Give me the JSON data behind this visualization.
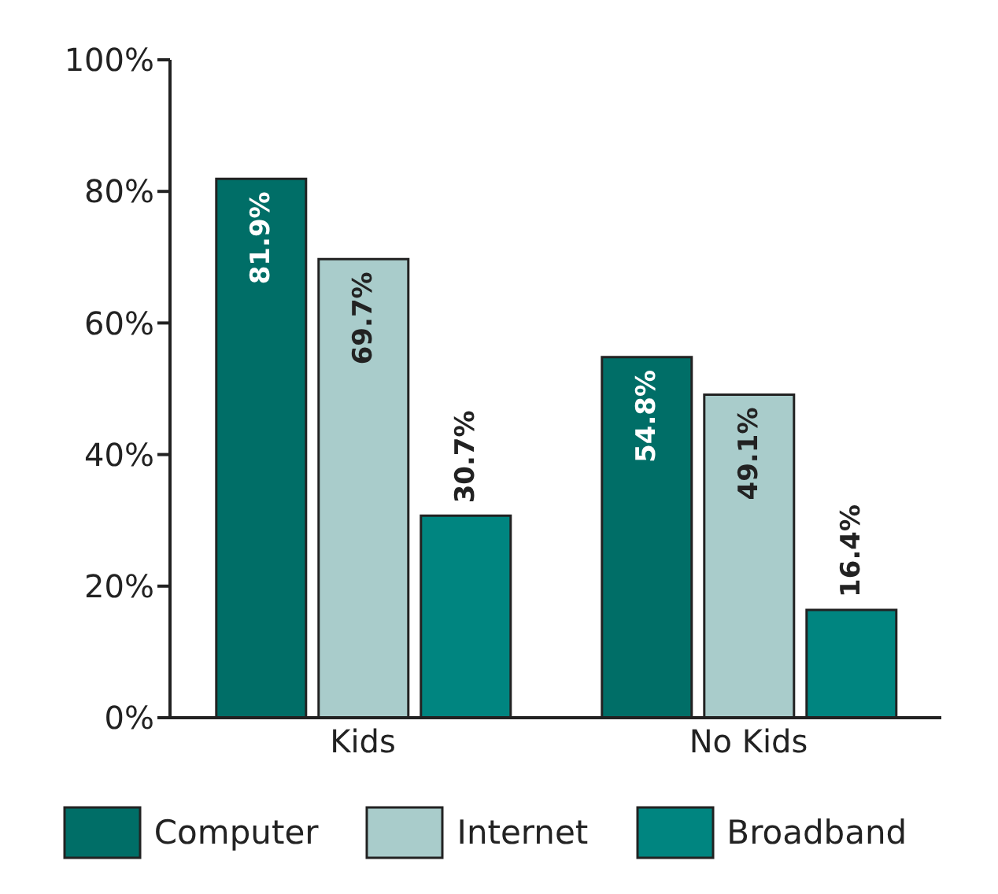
{
  "chart_data": {
    "type": "bar",
    "categories": [
      "Kids",
      "No Kids"
    ],
    "series": [
      {
        "name": "Computer",
        "color": "#006e67",
        "values": [
          81.9,
          54.8
        ],
        "value_labels": [
          "81.9%",
          "54.8%"
        ]
      },
      {
        "name": "Internet",
        "color": "#a9cccb",
        "values": [
          69.7,
          49.1
        ],
        "value_labels": [
          "69.7%",
          "49.1%"
        ]
      },
      {
        "name": "Broadband",
        "color": "#008580",
        "values": [
          30.7,
          16.4
        ],
        "value_labels": [
          "30.7%",
          "16.4%"
        ]
      }
    ],
    "ylim": [
      0,
      100
    ],
    "yticks": [
      {
        "value": 0,
        "label": "0%"
      },
      {
        "value": 20,
        "label": "20%"
      },
      {
        "value": 40,
        "label": "40%"
      },
      {
        "value": 60,
        "label": "60%"
      },
      {
        "value": 80,
        "label": "80%"
      },
      {
        "value": 100,
        "label": "100%"
      }
    ],
    "grid": false,
    "legend": "bottom"
  }
}
